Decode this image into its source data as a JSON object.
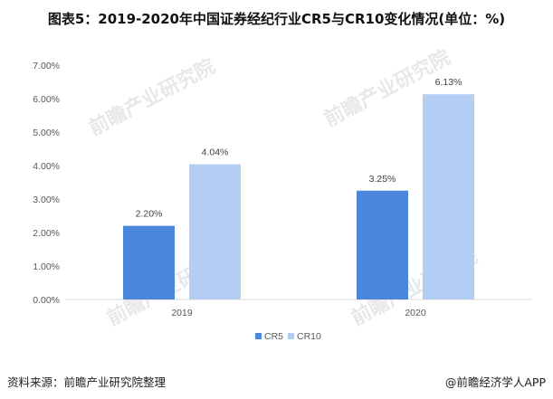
{
  "header": {
    "title": "图表5：2019-2020年中国证券经纪行业CR5与CR10变化情况(单位：%)"
  },
  "footer": {
    "source": "资料来源：前瞻产业研究院整理",
    "brand": "@前瞻经济学人APP"
  },
  "watermark": {
    "text": "前瞻产业研究院"
  },
  "colors": {
    "cr5": "#4a86dc",
    "cr10": "#b4cdf2",
    "axis": "#d9d9d9",
    "text": "#595959"
  },
  "chart_data": {
    "type": "bar",
    "categories": [
      "2019",
      "2020"
    ],
    "series": [
      {
        "name": "CR5",
        "values": [
          2.2,
          3.25
        ],
        "labels": [
          "2.20%",
          "3.25%"
        ]
      },
      {
        "name": "CR10",
        "values": [
          4.04,
          6.13
        ],
        "labels": [
          "4.04%",
          "6.13%"
        ]
      }
    ],
    "ylim": [
      0,
      7
    ],
    "yticks": [
      "0.00%",
      "1.00%",
      "2.00%",
      "3.00%",
      "4.00%",
      "5.00%",
      "6.00%",
      "7.00%"
    ],
    "grid": false,
    "legend": "bottom-center"
  }
}
